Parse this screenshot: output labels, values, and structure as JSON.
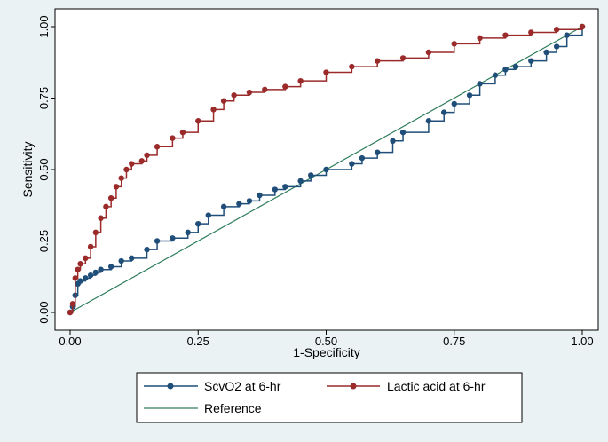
{
  "chart_data": {
    "type": "line",
    "title": "",
    "xlabel": "1-Specificity",
    "ylabel": "Sensitivity",
    "xlim": [
      0,
      1
    ],
    "ylim": [
      0,
      1
    ],
    "x_ticks": [
      "0.00",
      "0.25",
      "0.50",
      "0.75",
      "1.00"
    ],
    "y_ticks": [
      "0.00",
      "0.25",
      "0.50",
      "0.75",
      "1.00"
    ],
    "grid": false,
    "legend_position": "bottom",
    "series": [
      {
        "name": "ScvO2 at 6-hr",
        "color": "#1f4e79",
        "marker": "circle",
        "x": [
          0.0,
          0.005,
          0.01,
          0.015,
          0.02,
          0.03,
          0.04,
          0.05,
          0.06,
          0.08,
          0.1,
          0.12,
          0.15,
          0.17,
          0.2,
          0.23,
          0.25,
          0.27,
          0.3,
          0.33,
          0.35,
          0.37,
          0.4,
          0.42,
          0.45,
          0.47,
          0.5,
          0.55,
          0.57,
          0.6,
          0.63,
          0.65,
          0.7,
          0.73,
          0.75,
          0.78,
          0.8,
          0.83,
          0.85,
          0.87,
          0.9,
          0.93,
          0.95,
          0.97,
          1.0
        ],
        "y": [
          0.0,
          0.02,
          0.06,
          0.1,
          0.11,
          0.12,
          0.13,
          0.14,
          0.15,
          0.16,
          0.18,
          0.19,
          0.22,
          0.25,
          0.26,
          0.28,
          0.31,
          0.34,
          0.37,
          0.38,
          0.39,
          0.41,
          0.43,
          0.44,
          0.46,
          0.48,
          0.5,
          0.52,
          0.54,
          0.56,
          0.6,
          0.63,
          0.67,
          0.7,
          0.73,
          0.76,
          0.8,
          0.83,
          0.85,
          0.86,
          0.88,
          0.91,
          0.93,
          0.97,
          1.0
        ]
      },
      {
        "name": "Lactic acid at 6-hr",
        "color": "#9b2a2a",
        "marker": "circle",
        "x": [
          0.0,
          0.005,
          0.01,
          0.015,
          0.02,
          0.03,
          0.04,
          0.05,
          0.06,
          0.07,
          0.08,
          0.09,
          0.1,
          0.11,
          0.12,
          0.14,
          0.15,
          0.17,
          0.2,
          0.22,
          0.25,
          0.28,
          0.3,
          0.32,
          0.35,
          0.38,
          0.42,
          0.45,
          0.5,
          0.55,
          0.6,
          0.65,
          0.7,
          0.75,
          0.8,
          0.85,
          0.9,
          0.95,
          1.0
        ],
        "y": [
          0.0,
          0.03,
          0.12,
          0.15,
          0.17,
          0.19,
          0.23,
          0.28,
          0.33,
          0.37,
          0.4,
          0.44,
          0.47,
          0.5,
          0.52,
          0.53,
          0.55,
          0.58,
          0.61,
          0.63,
          0.67,
          0.71,
          0.74,
          0.76,
          0.77,
          0.78,
          0.79,
          0.81,
          0.84,
          0.86,
          0.88,
          0.89,
          0.91,
          0.94,
          0.96,
          0.97,
          0.98,
          0.99,
          1.0
        ]
      },
      {
        "name": "Reference",
        "color": "#2e7d5b",
        "marker": "none",
        "x": [
          0,
          1
        ],
        "y": [
          0,
          1
        ]
      }
    ]
  }
}
